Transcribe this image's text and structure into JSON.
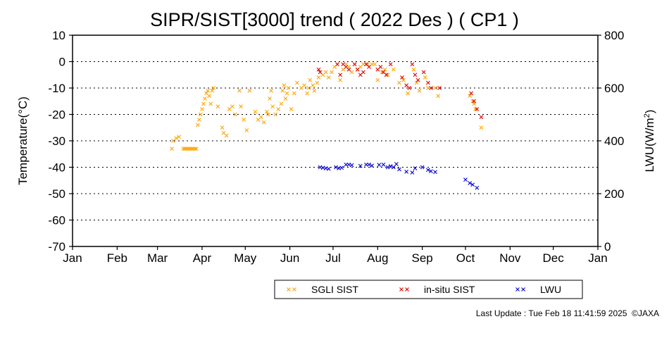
{
  "chart_data": {
    "type": "scatter",
    "title": "SIPR/SIST[3000] trend ( 2022 Des ) ( CP1 )",
    "ylabel_left": "Temperature(°C)",
    "ylabel_right": "LWU(W/m²)",
    "ylim_left": [
      -70,
      10
    ],
    "ylim_right": [
      0,
      800
    ],
    "yticks_left": [
      10,
      0,
      -10,
      -20,
      -30,
      -40,
      -50,
      -60,
      -70
    ],
    "yticks_right": [
      800,
      600,
      400,
      200,
      0
    ],
    "xlim": [
      "2022-01-01",
      "2023-01-01"
    ],
    "xticks": [
      {
        "date": "2022-01-01",
        "label": "Jan"
      },
      {
        "date": "2022-02-01",
        "label": "Feb"
      },
      {
        "date": "2022-03-01",
        "label": "Mar"
      },
      {
        "date": "2022-04-01",
        "label": "Apr"
      },
      {
        "date": "2022-05-01",
        "label": "May"
      },
      {
        "date": "2022-06-01",
        "label": "Jun"
      },
      {
        "date": "2022-07-01",
        "label": "Jul"
      },
      {
        "date": "2022-08-01",
        "label": "Aug"
      },
      {
        "date": "2022-09-01",
        "label": "Sep"
      },
      {
        "date": "2022-10-01",
        "label": "Oct"
      },
      {
        "date": "2022-11-01",
        "label": "Nov"
      },
      {
        "date": "2022-12-01",
        "label": "Dec"
      },
      {
        "date": "2023-01-01",
        "label": "Jan"
      }
    ],
    "grid": "horizontal dotted",
    "legend_position": "bottom-right",
    "series": [
      {
        "name": "SGLI SIST",
        "color": "#ffa500",
        "axis": "left",
        "points": [
          [
            "2022-03-11",
            -33
          ],
          [
            "2022-03-12",
            -30
          ],
          [
            "2022-03-14",
            -29
          ],
          [
            "2022-03-16",
            -28.5
          ],
          [
            "2022-03-19",
            -33
          ],
          [
            "2022-03-20",
            -33
          ],
          [
            "2022-03-21",
            -33
          ],
          [
            "2022-03-22",
            -33
          ],
          [
            "2022-03-23",
            -33
          ],
          [
            "2022-03-24",
            -33
          ],
          [
            "2022-03-25",
            -33
          ],
          [
            "2022-03-26",
            -33
          ],
          [
            "2022-03-27",
            -33
          ],
          [
            "2022-03-28",
            -33
          ],
          [
            "2022-03-29",
            -24
          ],
          [
            "2022-03-30",
            -22
          ],
          [
            "2022-03-31",
            -20
          ],
          [
            "2022-04-01",
            -18
          ],
          [
            "2022-04-02",
            -16
          ],
          [
            "2022-04-03",
            -14
          ],
          [
            "2022-04-04",
            -12
          ],
          [
            "2022-04-05",
            -11
          ],
          [
            "2022-04-06",
            -13
          ],
          [
            "2022-04-07",
            -16
          ],
          [
            "2022-04-08",
            -11
          ],
          [
            "2022-04-09",
            -10
          ],
          [
            "2022-04-12",
            -17
          ],
          [
            "2022-04-15",
            -25
          ],
          [
            "2022-04-16",
            -27
          ],
          [
            "2022-04-18",
            -28
          ],
          [
            "2022-04-20",
            -18
          ],
          [
            "2022-04-22",
            -17
          ],
          [
            "2022-04-24",
            -20
          ],
          [
            "2022-04-27",
            -11
          ],
          [
            "2022-04-28",
            -17
          ],
          [
            "2022-04-30",
            -22
          ],
          [
            "2022-05-02",
            -26
          ],
          [
            "2022-05-04",
            -11
          ],
          [
            "2022-05-08",
            -19
          ],
          [
            "2022-05-10",
            -22
          ],
          [
            "2022-05-12",
            -21
          ],
          [
            "2022-05-14",
            -23
          ],
          [
            "2022-05-16",
            -19
          ],
          [
            "2022-05-17",
            -20
          ],
          [
            "2022-05-18",
            -14
          ],
          [
            "2022-05-19",
            -11
          ],
          [
            "2022-05-20",
            -17
          ],
          [
            "2022-05-22",
            -20
          ],
          [
            "2022-05-24",
            -18
          ],
          [
            "2022-05-26",
            -16
          ],
          [
            "2022-05-27",
            -11
          ],
          [
            "2022-05-28",
            -9
          ],
          [
            "2022-05-29",
            -14
          ],
          [
            "2022-05-30",
            -12
          ],
          [
            "2022-05-31",
            -10
          ],
          [
            "2022-06-02",
            -18
          ],
          [
            "2022-06-04",
            -12
          ],
          [
            "2022-06-06",
            -8
          ],
          [
            "2022-06-09",
            -10
          ],
          [
            "2022-06-11",
            -9
          ],
          [
            "2022-06-13",
            -12
          ],
          [
            "2022-06-14",
            -10
          ],
          [
            "2022-06-15",
            -7
          ],
          [
            "2022-06-17",
            -9
          ],
          [
            "2022-06-18",
            -11
          ],
          [
            "2022-06-20",
            -8
          ],
          [
            "2022-06-21",
            -6
          ],
          [
            "2022-06-24",
            -5
          ],
          [
            "2022-06-26",
            -4
          ],
          [
            "2022-06-28",
            -6
          ],
          [
            "2022-06-30",
            -4
          ],
          [
            "2022-07-02",
            -2
          ],
          [
            "2022-07-04",
            -1
          ],
          [
            "2022-07-06",
            -7
          ],
          [
            "2022-07-08",
            -3
          ],
          [
            "2022-07-10",
            -1
          ],
          [
            "2022-07-12",
            -2
          ],
          [
            "2022-07-14",
            -4
          ],
          [
            "2022-07-16",
            -1
          ],
          [
            "2022-07-18",
            -3
          ],
          [
            "2022-07-20",
            -2
          ],
          [
            "2022-07-22",
            -1
          ],
          [
            "2022-07-25",
            -1
          ],
          [
            "2022-07-28",
            -1
          ],
          [
            "2022-07-30",
            -1
          ],
          [
            "2022-08-01",
            -7
          ],
          [
            "2022-08-04",
            -4
          ],
          [
            "2022-08-06",
            -3
          ],
          [
            "2022-08-08",
            -5
          ],
          [
            "2022-08-12",
            -3
          ],
          [
            "2022-08-16",
            -8
          ],
          [
            "2022-08-19",
            -7
          ],
          [
            "2022-08-22",
            -12
          ],
          [
            "2022-08-26",
            -3
          ],
          [
            "2022-08-28",
            -8
          ],
          [
            "2022-08-30",
            -11
          ],
          [
            "2022-09-03",
            -6
          ],
          [
            "2022-09-05",
            -10
          ],
          [
            "2022-09-10",
            -10
          ],
          [
            "2022-09-12",
            -13
          ],
          [
            "2022-10-04",
            -13
          ],
          [
            "2022-10-06",
            -15
          ],
          [
            "2022-10-07",
            -16
          ],
          [
            "2022-10-08",
            -18
          ],
          [
            "2022-10-12",
            -25
          ]
        ]
      },
      {
        "name": "in-situ SIST",
        "color": "#dd0000",
        "axis": "left",
        "points": [
          [
            "2022-06-21",
            -3
          ],
          [
            "2022-06-22",
            -4
          ],
          [
            "2022-07-04",
            -1
          ],
          [
            "2022-07-06",
            -5
          ],
          [
            "2022-07-08",
            -1
          ],
          [
            "2022-07-10",
            -2
          ],
          [
            "2022-07-12",
            -3
          ],
          [
            "2022-07-16",
            -1
          ],
          [
            "2022-07-18",
            -3
          ],
          [
            "2022-07-20",
            -5
          ],
          [
            "2022-07-22",
            -4
          ],
          [
            "2022-07-24",
            -1
          ],
          [
            "2022-07-26",
            -2
          ],
          [
            "2022-08-01",
            -3
          ],
          [
            "2022-08-03",
            -2
          ],
          [
            "2022-08-05",
            -4
          ],
          [
            "2022-08-07",
            -5
          ],
          [
            "2022-08-10",
            -1
          ],
          [
            "2022-08-18",
            -6
          ],
          [
            "2022-08-21",
            -9
          ],
          [
            "2022-08-23",
            -10
          ],
          [
            "2022-08-25",
            -1
          ],
          [
            "2022-08-27",
            -5
          ],
          [
            "2022-08-29",
            -7
          ],
          [
            "2022-09-02",
            -4
          ],
          [
            "2022-09-05",
            -8
          ],
          [
            "2022-09-07",
            -10
          ],
          [
            "2022-09-13",
            -10
          ],
          [
            "2022-10-05",
            -12
          ],
          [
            "2022-10-07",
            -15
          ],
          [
            "2022-10-09",
            -18
          ],
          [
            "2022-10-12",
            -21
          ]
        ]
      },
      {
        "name": "LWU",
        "color": "#0000cc",
        "axis": "right",
        "points": [
          [
            "2022-06-22",
            300
          ],
          [
            "2022-06-24",
            298
          ],
          [
            "2022-06-26",
            296
          ],
          [
            "2022-06-28",
            294
          ],
          [
            "2022-07-03",
            300
          ],
          [
            "2022-07-05",
            296
          ],
          [
            "2022-07-07",
            298
          ],
          [
            "2022-07-10",
            310
          ],
          [
            "2022-07-12",
            310
          ],
          [
            "2022-07-14",
            308
          ],
          [
            "2022-07-20",
            305
          ],
          [
            "2022-07-24",
            310
          ],
          [
            "2022-07-26",
            310
          ],
          [
            "2022-07-28",
            306
          ],
          [
            "2022-08-02",
            309
          ],
          [
            "2022-08-05",
            310
          ],
          [
            "2022-08-08",
            300
          ],
          [
            "2022-08-10",
            304
          ],
          [
            "2022-08-12",
            300
          ],
          [
            "2022-08-14",
            312
          ],
          [
            "2022-08-16",
            292
          ],
          [
            "2022-08-21",
            283
          ],
          [
            "2022-08-25",
            280
          ],
          [
            "2022-08-27",
            296
          ],
          [
            "2022-09-01",
            300
          ],
          [
            "2022-09-05",
            290
          ],
          [
            "2022-09-07",
            285
          ],
          [
            "2022-09-10",
            282
          ],
          [
            "2022-10-01",
            253
          ],
          [
            "2022-10-04",
            240
          ],
          [
            "2022-10-06",
            234
          ],
          [
            "2022-10-09",
            222
          ]
        ]
      }
    ]
  },
  "footer": {
    "last_update": "Last Update : Tue Feb 18 11:41:59 2025",
    "copyright": "©JAXA"
  }
}
